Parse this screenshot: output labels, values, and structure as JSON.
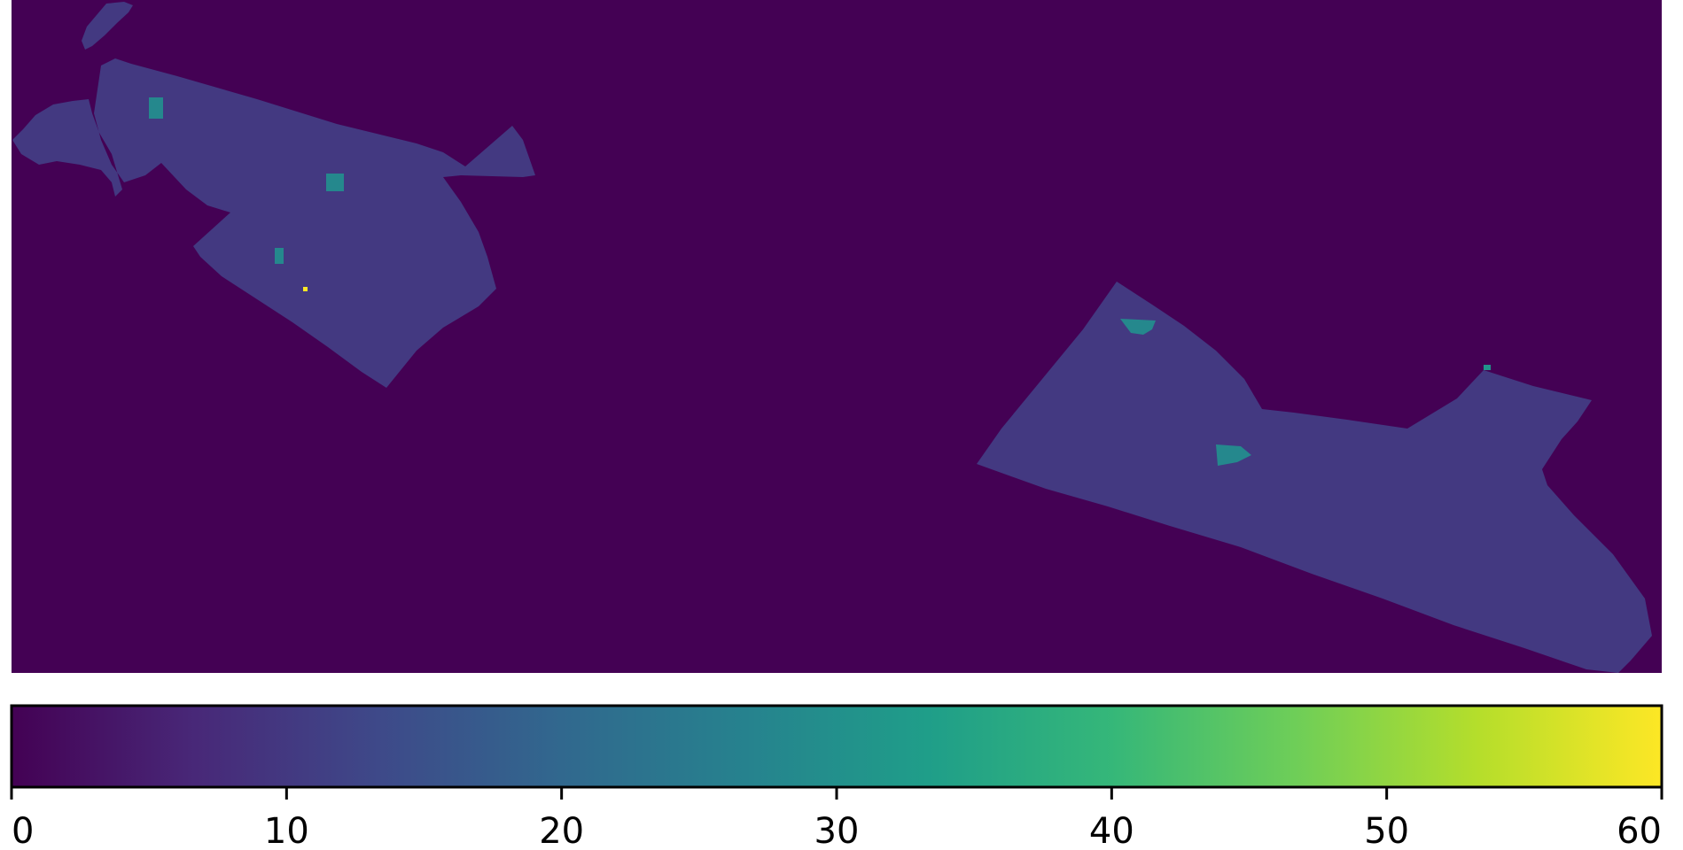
{
  "chart_data": {
    "type": "heatmap",
    "title": "",
    "xlabel": "",
    "ylabel": "",
    "colormap": "viridis",
    "background_value": 0,
    "regions": [
      {
        "name": "",
        "value": 10
      },
      {
        "name": "",
        "value": 10
      },
      {
        "name": "",
        "value": 10
      }
    ],
    "patches": [
      {
        "value": 28
      },
      {
        "value": 28
      },
      {
        "value": 28
      },
      {
        "value": 28
      },
      {
        "value": 28
      },
      {
        "value": 31
      },
      {
        "value": 60
      }
    ],
    "colorbar": {
      "orientation": "horizontal",
      "range": [
        0,
        60
      ],
      "ticks": [
        0,
        10,
        20,
        30,
        40,
        50,
        60
      ],
      "tick_labels": [
        "0",
        "10",
        "20",
        "30",
        "40",
        "50",
        "60"
      ]
    }
  },
  "colors": {
    "viridis_stops": [
      "#440154",
      "#482878",
      "#3e4989",
      "#31688e",
      "#26828e",
      "#1f9e89",
      "#35b779",
      "#6ece58",
      "#b5de2b",
      "#fde725"
    ]
  }
}
